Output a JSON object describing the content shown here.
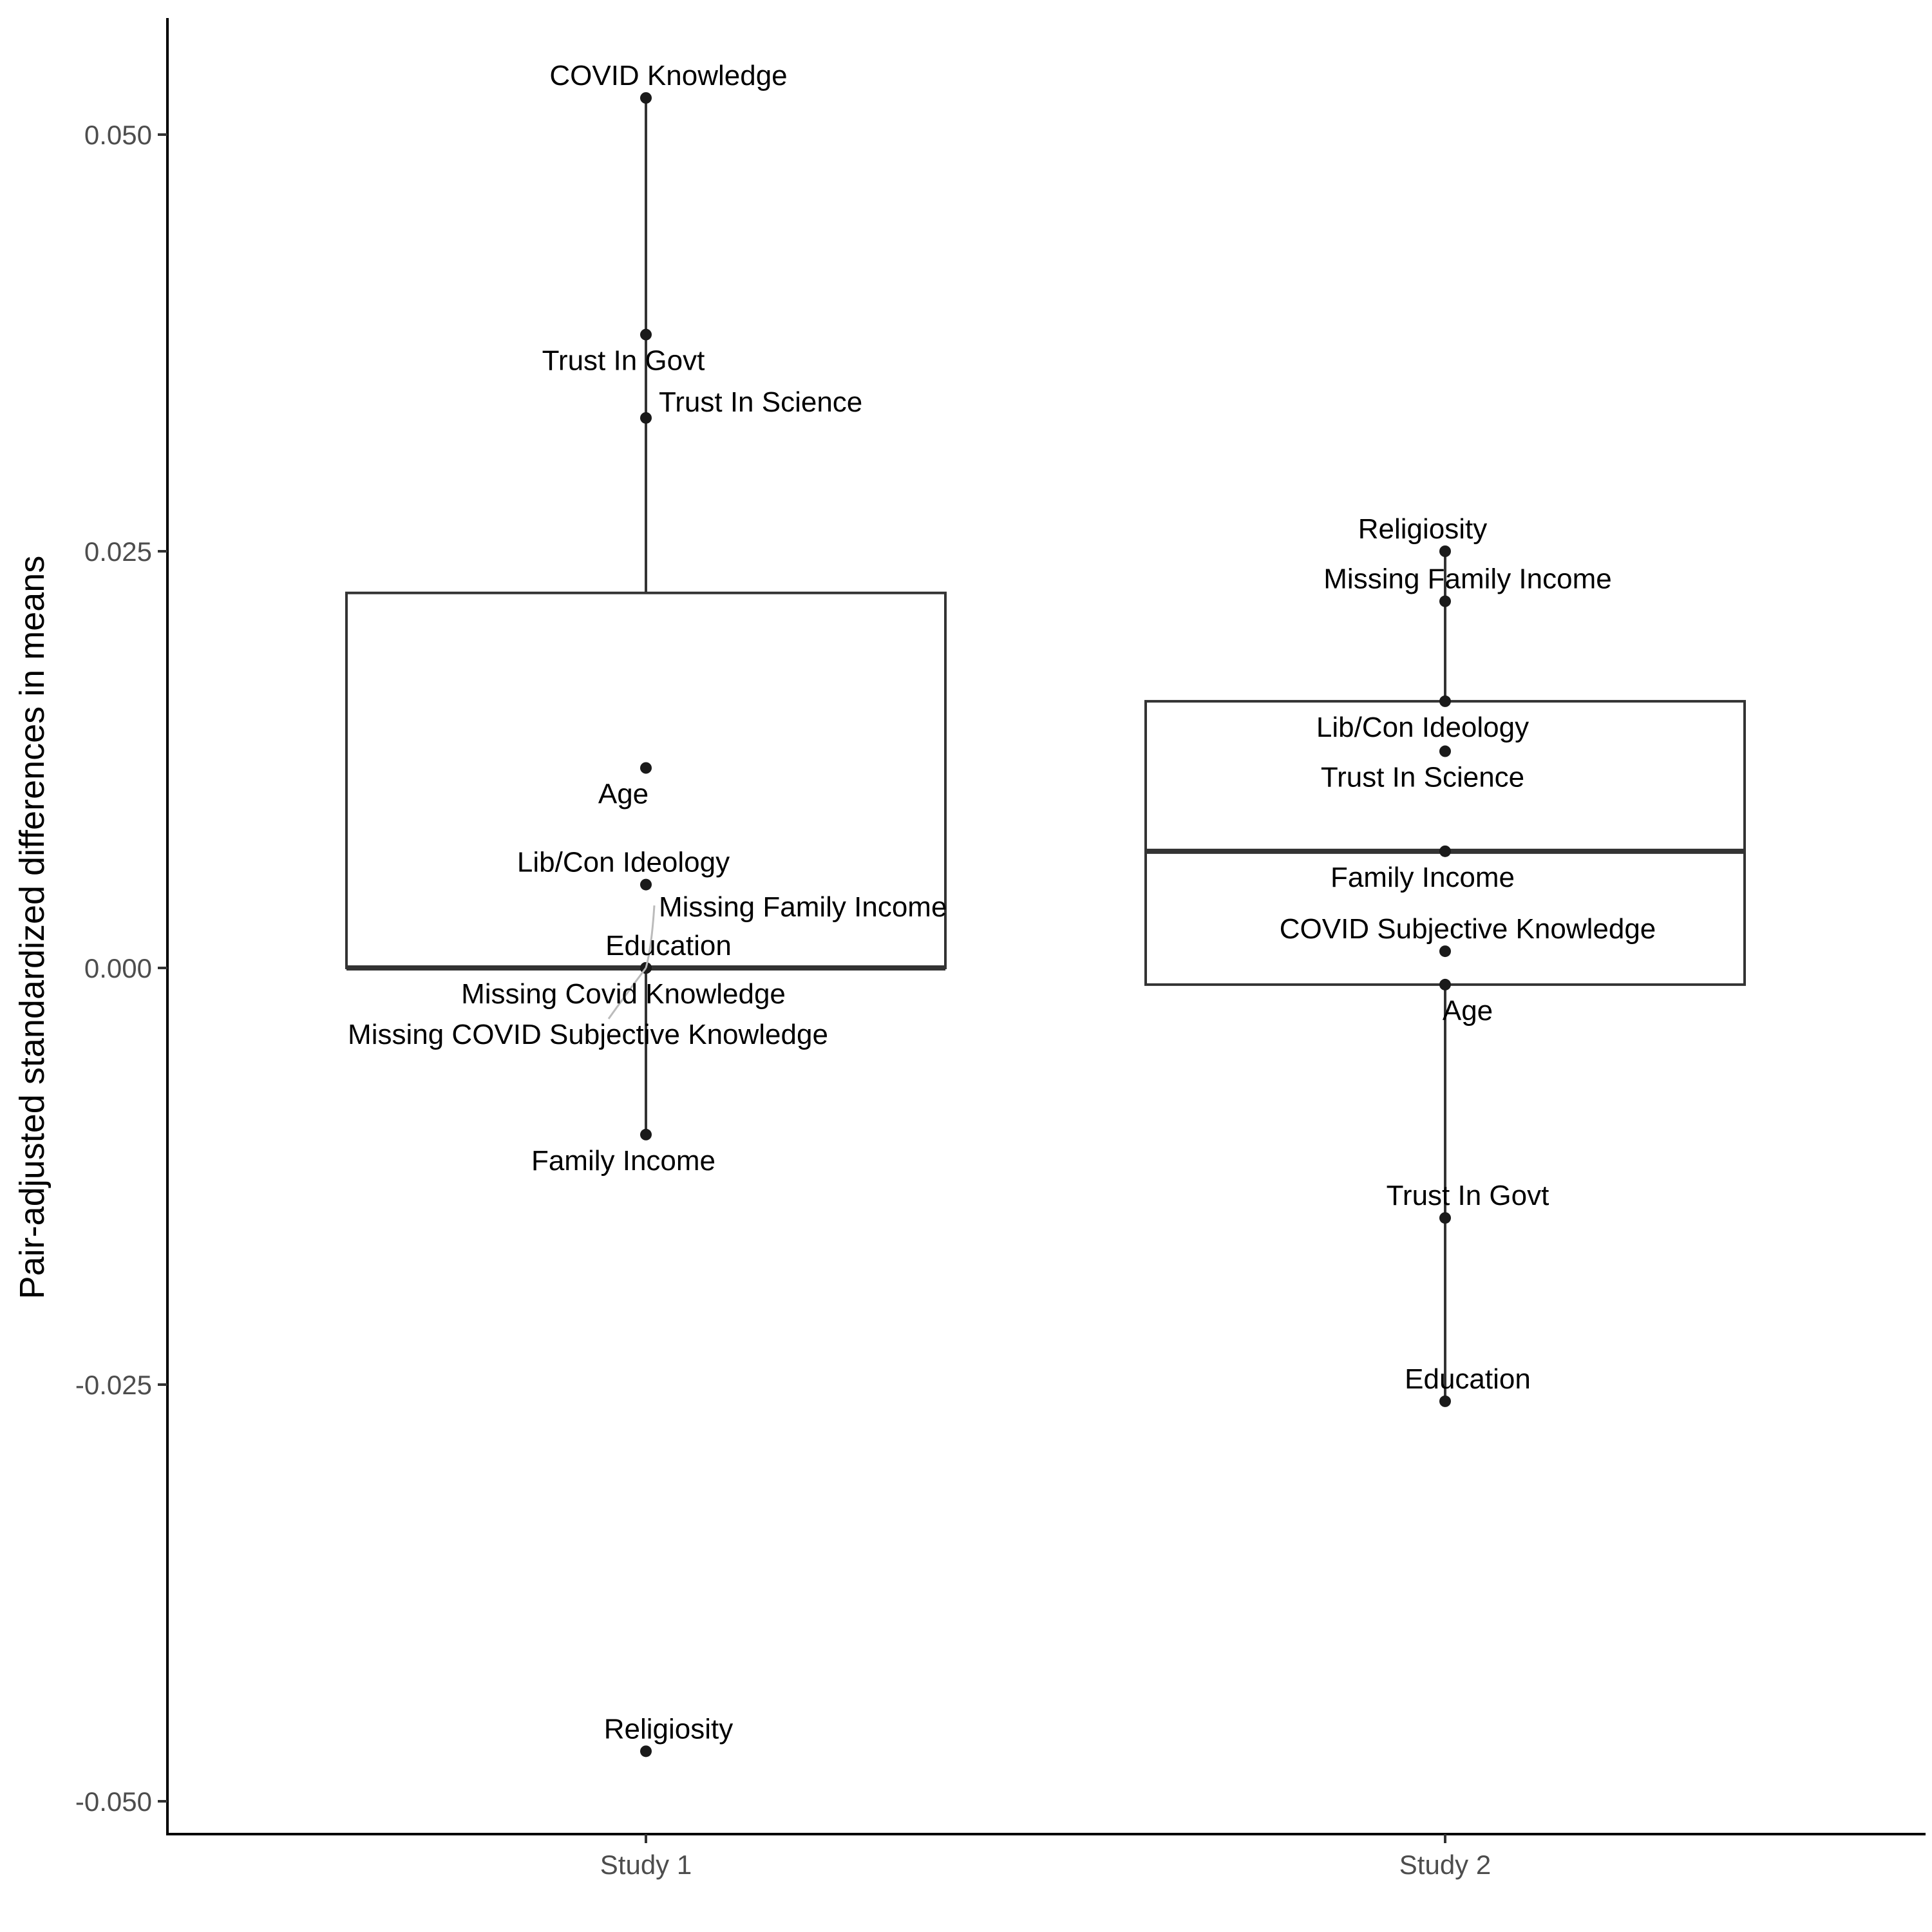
{
  "chart_data": {
    "type": "box",
    "ylabel": "Pair-adjusted standardized differences in means",
    "xlabel": "",
    "ylim": [
      -0.0518,
      0.057
    ],
    "y_ticks": [
      {
        "value": -0.05,
        "label": "-0.050"
      },
      {
        "value": -0.025,
        "label": "-0.025"
      },
      {
        "value": 0.0,
        "label": "0.000"
      },
      {
        "value": 0.025,
        "label": "0.025"
      },
      {
        "value": 0.05,
        "label": "0.050"
      }
    ],
    "categories": [
      "Study 1",
      "Study 2"
    ],
    "grid": false,
    "legend": "none",
    "boxes": [
      {
        "category": "Study 1",
        "whisker_low": -0.01,
        "q1": 0.0,
        "median": 0.0,
        "q3": 0.0225,
        "whisker_high": 0.0525
      },
      {
        "category": "Study 2",
        "whisker_low": -0.026,
        "q1": -0.001,
        "median": 0.007,
        "q3": 0.016,
        "whisker_high": 0.025
      }
    ],
    "series": [
      {
        "category": "Study 1",
        "points": [
          {
            "label": "COVID Knowledge",
            "y": 0.0522
          },
          {
            "label": "Trust In Govt",
            "y": 0.038
          },
          {
            "label": "Trust In Science",
            "y": 0.033
          },
          {
            "label": "Age",
            "y": 0.012
          },
          {
            "label": "Lib/Con Ideology",
            "y": 0.005
          },
          {
            "label": "Missing Family Income",
            "y": 0.0
          },
          {
            "label": "Education",
            "y": 0.0
          },
          {
            "label": "Missing Covid Knowledge",
            "y": 0.0
          },
          {
            "label": "Missing COVID Subjective Knowledge",
            "y": 0.0
          },
          {
            "label": "Family Income",
            "y": -0.01
          },
          {
            "label": "Religiosity",
            "y": -0.047
          }
        ]
      },
      {
        "category": "Study 2",
        "points": [
          {
            "label": "Religiosity",
            "y": 0.025
          },
          {
            "label": "Missing Family Income",
            "y": 0.022
          },
          {
            "label": "Lib/Con Ideology",
            "y": 0.016
          },
          {
            "label": "Trust In Science",
            "y": 0.013
          },
          {
            "label": "Family Income",
            "y": 0.007
          },
          {
            "label": "COVID Subjective Knowledge",
            "y": 0.001
          },
          {
            "label": "Age",
            "y": -0.001
          },
          {
            "label": "Trust In Govt",
            "y": -0.015
          },
          {
            "label": "Education",
            "y": -0.026
          }
        ]
      }
    ]
  }
}
